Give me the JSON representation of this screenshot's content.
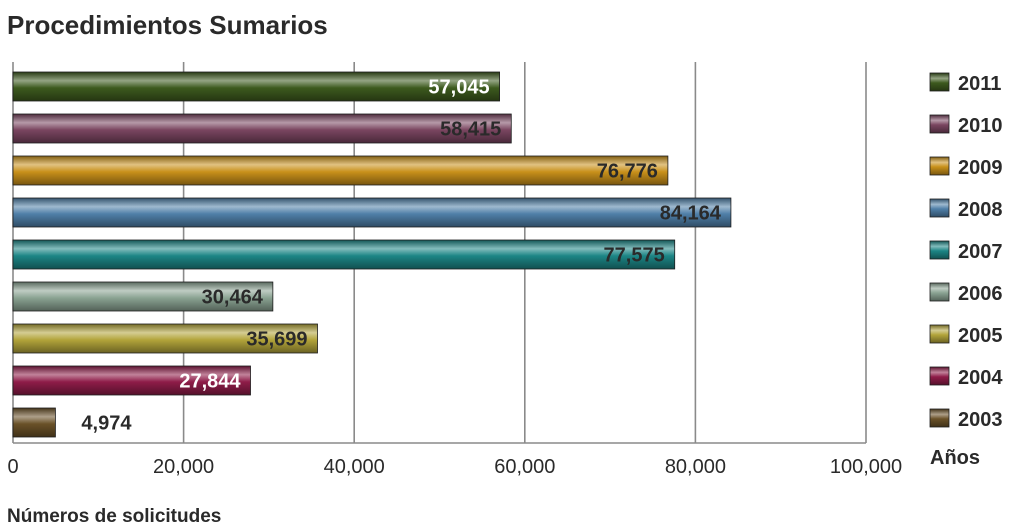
{
  "chart_data": {
    "type": "bar",
    "orientation": "horizontal",
    "title": "Procedimientos Sumarios",
    "xlabel": "Números de solicitudes",
    "legend_title": "Años",
    "xlim": [
      0,
      100000
    ],
    "xticks": [
      "0",
      "20,000",
      "40,000",
      "60,000",
      "80,000",
      "100,000"
    ],
    "grid": true,
    "legend_position": "right",
    "series": [
      {
        "name": "2011",
        "value": 57045,
        "label": "57,045",
        "color": "#3d5a1e",
        "label_color": "#ffffff"
      },
      {
        "name": "2010",
        "value": 58415,
        "label": "58,415",
        "color": "#7a4560",
        "label_color": "#2a2a2a"
      },
      {
        "name": "2009",
        "value": 76776,
        "label": "76,776",
        "color": "#c8901a",
        "label_color": "#2a2a2a"
      },
      {
        "name": "2008",
        "value": 84164,
        "label": "84,164",
        "color": "#4f7fa8",
        "label_color": "#2a2a2a"
      },
      {
        "name": "2007",
        "value": 77575,
        "label": "77,575",
        "color": "#1c8585",
        "label_color": "#2a2a2a"
      },
      {
        "name": "2006",
        "value": 30464,
        "label": "30,464",
        "color": "#8aa392",
        "label_color": "#2a2a2a"
      },
      {
        "name": "2005",
        "value": 35699,
        "label": "35,699",
        "color": "#b2a43a",
        "label_color": "#2a2a2a"
      },
      {
        "name": "2004",
        "value": 27844,
        "label": "27,844",
        "color": "#8e1c48",
        "label_color": "#ffffff"
      },
      {
        "name": "2003",
        "value": 4974,
        "label": "4,974",
        "color": "#6a5128",
        "label_color": "#2a2a2a"
      }
    ]
  }
}
